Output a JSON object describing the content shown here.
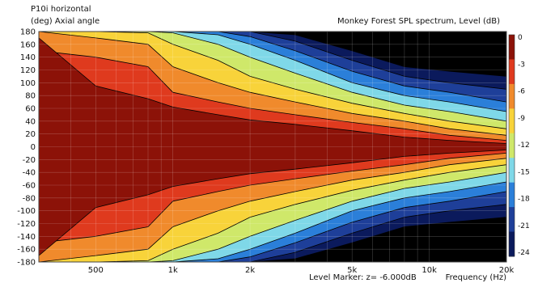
{
  "chart_data": {
    "type": "heatmap",
    "title_line1": "P10i horizontal",
    "title_line2": "(deg)  Axial angle",
    "subtitle": "Monkey Forest SPL spectrum, Level  (dB)",
    "xlabel": "Frequency  (Hz)",
    "ylabel": "(deg)  Axial angle",
    "level_marker": "Level Marker:  z= -6.000dB",
    "x_scale": "log",
    "xlim": [
      300,
      20000
    ],
    "ylim": [
      -180,
      180
    ],
    "x_ticks": [
      {
        "value": 500,
        "label": "500"
      },
      {
        "value": 1000,
        "label": "1k"
      },
      {
        "value": 2000,
        "label": "2k"
      },
      {
        "value": 5000,
        "label": "5k"
      },
      {
        "value": 10000,
        "label": "10k"
      },
      {
        "value": 20000,
        "label": "20k"
      }
    ],
    "y_ticks": [
      180,
      160,
      140,
      120,
      100,
      80,
      60,
      40,
      20,
      0,
      -20,
      -40,
      -60,
      -80,
      -100,
      -120,
      -140,
      -160,
      -180
    ],
    "grid": true,
    "colorbar": {
      "ticks": [
        "0",
        "-3",
        "-6",
        "-9",
        "-12",
        "-15",
        "-18",
        "-21",
        "-24"
      ],
      "colors": [
        "#8c1208",
        "#df3a1e",
        "#f08a2c",
        "#f8d33a",
        "#cfe86a",
        "#7fd8e8",
        "#2b7fd9",
        "#1e3f99",
        "#0b1a5c"
      ]
    },
    "level_bands": [
      0,
      -3,
      -6,
      -9,
      -12,
      -15,
      -18,
      -21,
      -24
    ],
    "contour_colors": [
      "#8c1208",
      "#df3a1e",
      "#f08a2c",
      "#f8d33a",
      "#cfe86a",
      "#7fd8e8",
      "#2b7fd9",
      "#1e3f99",
      "#0b1a5c",
      "#000000"
    ],
    "beamwidth_contours": [
      {
        "freq": 300,
        "half_angles": [
          170,
          150,
          180,
          180,
          180,
          180,
          180,
          180,
          180
        ]
      },
      {
        "freq": 500,
        "half_angles": [
          95,
          140,
          170,
          180,
          180,
          180,
          180,
          180,
          180
        ]
      },
      {
        "freq": 800,
        "half_angles": [
          75,
          125,
          160,
          178,
          180,
          180,
          180,
          180,
          180
        ]
      },
      {
        "freq": 1000,
        "half_angles": [
          62,
          85,
          125,
          160,
          178,
          180,
          180,
          180,
          180
        ]
      },
      {
        "freq": 1500,
        "half_angles": [
          50,
          70,
          100,
          135,
          160,
          175,
          180,
          180,
          180
        ]
      },
      {
        "freq": 2000,
        "half_angles": [
          42,
          60,
          85,
          110,
          140,
          160,
          172,
          180,
          180
        ]
      },
      {
        "freq": 3000,
        "half_angles": [
          35,
          50,
          70,
          90,
          115,
          135,
          150,
          165,
          175
        ]
      },
      {
        "freq": 5000,
        "half_angles": [
          25,
          38,
          52,
          68,
          85,
          100,
          118,
          135,
          150
        ]
      },
      {
        "freq": 8000,
        "half_angles": [
          15,
          28,
          40,
          52,
          65,
          80,
          95,
          110,
          125
        ]
      },
      {
        "freq": 12000,
        "half_angles": [
          10,
          18,
          28,
          40,
          55,
          70,
          85,
          100,
          118
        ]
      },
      {
        "freq": 20000,
        "half_angles": [
          5,
          10,
          18,
          28,
          40,
          55,
          70,
          90,
          110
        ]
      }
    ]
  }
}
